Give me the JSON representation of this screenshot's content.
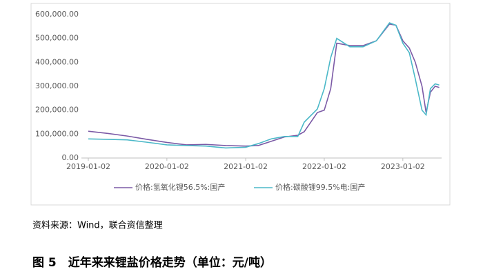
{
  "chart_data": {
    "type": "line",
    "x": [
      "2019-01-02",
      "2019-04-01",
      "2019-07-01",
      "2019-10-01",
      "2020-01-02",
      "2020-04-01",
      "2020-07-01",
      "2020-10-01",
      "2021-01-02",
      "2021-03-01",
      "2021-05-01",
      "2021-07-01",
      "2021-09-01",
      "2021-10-01",
      "2021-12-01",
      "2022-01-02",
      "2022-02-01",
      "2022-03-01",
      "2022-05-01",
      "2022-07-01",
      "2022-09-01",
      "2022-11-01",
      "2022-12-01",
      "2023-01-02",
      "2023-02-01",
      "2023-03-01",
      "2023-04-01",
      "2023-04-20",
      "2023-05-10",
      "2023-06-01",
      "2023-06-20"
    ],
    "series": [
      {
        "name": "价格:氢氧化锂56.5%:国产",
        "color": "#7b5aa6",
        "values": [
          112000,
          103000,
          92000,
          78000,
          65000,
          55000,
          57000,
          52000,
          50000,
          52000,
          70000,
          88000,
          95000,
          110000,
          190000,
          200000,
          290000,
          480000,
          470000,
          470000,
          490000,
          560000,
          555000,
          490000,
          460000,
          400000,
          300000,
          190000,
          275000,
          300000,
          295000
        ]
      },
      {
        "name": "价格:碳酸锂99.5%电:国产",
        "color": "#4bb8c8",
        "values": [
          80000,
          78000,
          76000,
          66000,
          55000,
          52000,
          50000,
          42000,
          45000,
          60000,
          80000,
          90000,
          90000,
          150000,
          205000,
          290000,
          420000,
          500000,
          465000,
          465000,
          490000,
          565000,
          555000,
          480000,
          440000,
          330000,
          200000,
          180000,
          290000,
          310000,
          305000
        ]
      }
    ],
    "xlim": [
      "2018-12-01",
      "2023-07-01"
    ],
    "xticks": [
      "2019-01-02",
      "2020-01-02",
      "2021-01-02",
      "2022-01-02",
      "2023-01-02"
    ],
    "ylim": [
      0,
      600000
    ],
    "yticks": [
      {
        "value": 0,
        "label": "0.00"
      },
      {
        "value": 100000,
        "label": "100,000.00"
      },
      {
        "value": 200000,
        "label": "200,000.00"
      },
      {
        "value": 300000,
        "label": "300,000.00"
      },
      {
        "value": 400000,
        "label": "400,000.00"
      },
      {
        "value": 500000,
        "label": "500,000.00"
      },
      {
        "value": 600000,
        "label": "600,000.00"
      }
    ],
    "grid": false
  },
  "source": "资料来源：Wind，联合资信整理",
  "caption": "图 5　近年来来锂盐价格走势（单位：元/吨）"
}
